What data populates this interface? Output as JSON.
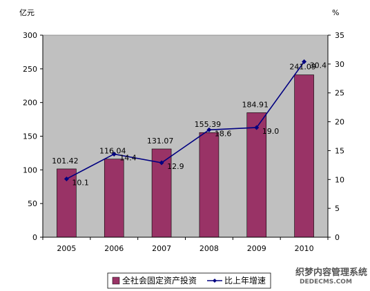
{
  "chart_data": {
    "type": "bar+line",
    "categories": [
      "2005",
      "2006",
      "2007",
      "2008",
      "2009",
      "2010"
    ],
    "series": [
      {
        "name": "全社会固定资产投资",
        "type": "bar",
        "axis": "left",
        "values": [
          101.42,
          116.04,
          131.07,
          155.39,
          184.91,
          241.09
        ],
        "labels": [
          "101.42",
          "116.04",
          "131.07",
          "155.39",
          "184.91",
          "241.09"
        ],
        "color": "#993366"
      },
      {
        "name": "比上年增速",
        "type": "line",
        "axis": "right",
        "values": [
          10.1,
          14.4,
          12.9,
          18.6,
          19.0,
          30.4
        ],
        "labels": [
          "10.1",
          "14.4",
          "12.9",
          "18.6",
          "19.0",
          "30.4"
        ],
        "color": "#000080"
      }
    ],
    "y_left": {
      "unit": "亿元",
      "ylim": [
        0,
        300
      ],
      "ticks": [
        "0",
        "50",
        "100",
        "150",
        "200",
        "250",
        "300"
      ]
    },
    "y_right": {
      "unit": "%",
      "ylim": [
        0,
        35
      ],
      "ticks": [
        "0",
        "5",
        "10",
        "15",
        "20",
        "25",
        "30",
        "35"
      ]
    },
    "plot_background": "#c0c0c0",
    "grid": false,
    "legend_position": "bottom"
  },
  "watermark": {
    "main": "织梦内容管理系统",
    "sub": "DEDECMS.COM"
  }
}
